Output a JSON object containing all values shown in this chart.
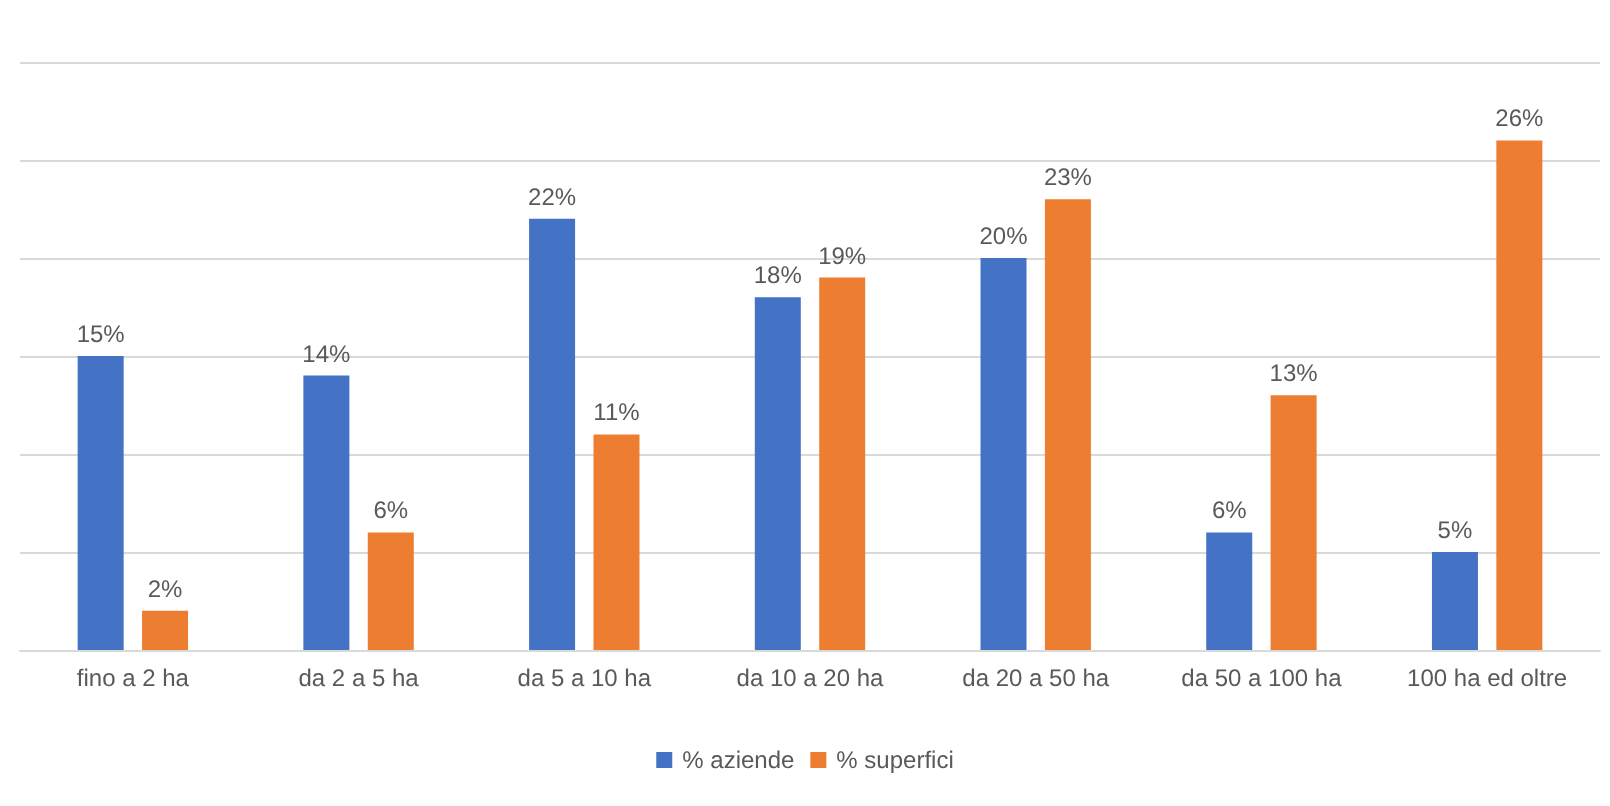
{
  "chart_data": {
    "type": "bar",
    "categories": [
      "fino a 2 ha",
      "da 2 a 5 ha",
      "da 5 a 10 ha",
      "da 10 a 20 ha",
      "da 20 a 50 ha",
      "da 50 a 100 ha",
      "100 ha ed oltre"
    ],
    "series": [
      {
        "name": "% aziende",
        "color": "#4472c4",
        "values": [
          15,
          14,
          22,
          18,
          20,
          6,
          5
        ],
        "value_labels": [
          "15%",
          "14%",
          "22%",
          "18%",
          "20%",
          "6%",
          "5%"
        ]
      },
      {
        "name": "% superfici",
        "color": "#ed7d31",
        "values": [
          2,
          6,
          11,
          19,
          23,
          13,
          26
        ],
        "value_labels": [
          "2%",
          "6%",
          "11%",
          "19%",
          "23%",
          "13%",
          "26%"
        ]
      }
    ],
    "ylim": [
      0,
      30
    ],
    "yticks": [
      {
        "value": 0,
        "label": null
      },
      {
        "value": 5,
        "label": null
      },
      {
        "value": 10,
        "label": null
      },
      {
        "value": 15,
        "label": null
      },
      {
        "value": 20,
        "label": null
      },
      {
        "value": 25,
        "label": null
      },
      {
        "value": 30,
        "label": null
      }
    ],
    "grid": "y",
    "legend": "bottom",
    "tick_labels": "x"
  }
}
